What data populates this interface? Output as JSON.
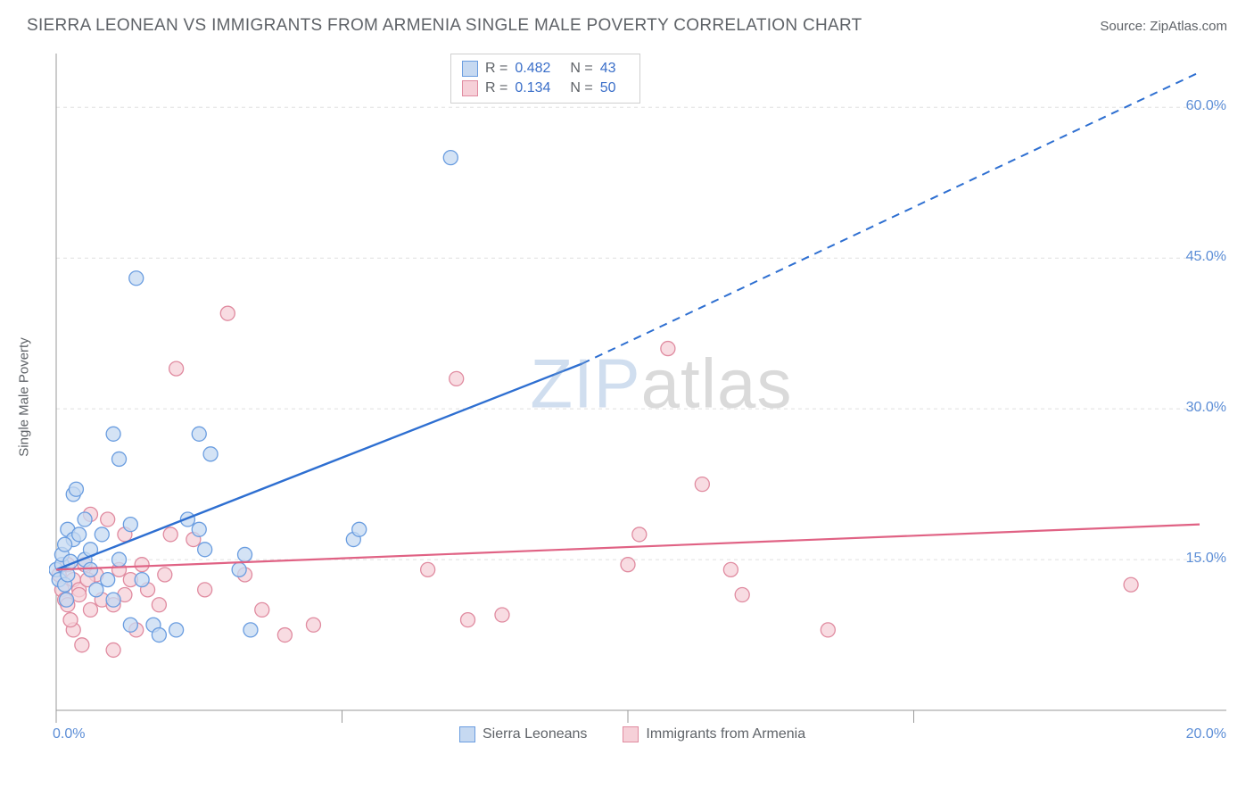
{
  "header": {
    "title": "SIERRA LEONEAN VS IMMIGRANTS FROM ARMENIA SINGLE MALE POVERTY CORRELATION CHART",
    "source_label": "Source: ",
    "source_value": "ZipAtlas.com"
  },
  "chart": {
    "type": "scatter",
    "ylabel": "Single Male Poverty",
    "watermark": {
      "part1": "ZIP",
      "part2": "atlas"
    },
    "background_color": "#ffffff",
    "grid_color": "#e0e0e0",
    "axis_color": "#9a9a9a",
    "xlim": [
      0,
      20
    ],
    "ylim": [
      0,
      65
    ],
    "y_ticks": [
      {
        "value": 15.0,
        "label": "15.0%"
      },
      {
        "value": 30.0,
        "label": "30.0%"
      },
      {
        "value": 45.0,
        "label": "45.0%"
      },
      {
        "value": 60.0,
        "label": "60.0%"
      }
    ],
    "x_ticks": [
      {
        "value": 0.0,
        "label": "0.0%"
      },
      {
        "value": 20.0,
        "label": "20.0%"
      }
    ],
    "x_grid_positions": [
      5,
      10,
      15
    ],
    "marker_radius": 8,
    "marker_stroke_width": 1.3,
    "series_a": {
      "name": "Sierra Leoneans",
      "fill": "#c6d9f1",
      "stroke": "#6a9de0",
      "line_color": "#2e6fd1",
      "r_value": "0.482",
      "n_value": "43",
      "trend": {
        "x1": 0,
        "y1": 14.0,
        "x2_solid": 9.2,
        "y2_solid": 34.5,
        "x2_dash": 20.0,
        "y2_dash": 63.5
      },
      "points": [
        [
          0.0,
          14.0
        ],
        [
          0.05,
          13.0
        ],
        [
          0.1,
          14.5
        ],
        [
          0.1,
          15.5
        ],
        [
          0.15,
          12.5
        ],
        [
          0.18,
          11.0
        ],
        [
          0.2,
          18.0
        ],
        [
          0.2,
          13.5
        ],
        [
          0.25,
          14.8
        ],
        [
          0.3,
          17.0
        ],
        [
          0.3,
          21.5
        ],
        [
          0.35,
          22.0
        ],
        [
          0.4,
          17.5
        ],
        [
          0.5,
          15.0
        ],
        [
          0.5,
          19.0
        ],
        [
          0.6,
          16.0
        ],
        [
          0.6,
          14.0
        ],
        [
          0.7,
          12.0
        ],
        [
          0.8,
          17.5
        ],
        [
          0.9,
          13.0
        ],
        [
          1.0,
          11.0
        ],
        [
          1.0,
          27.5
        ],
        [
          1.1,
          25.0
        ],
        [
          1.1,
          15.0
        ],
        [
          1.3,
          18.5
        ],
        [
          1.3,
          8.5
        ],
        [
          1.4,
          43.0
        ],
        [
          1.5,
          13.0
        ],
        [
          1.7,
          8.5
        ],
        [
          1.8,
          7.5
        ],
        [
          2.1,
          8.0
        ],
        [
          2.3,
          19.0
        ],
        [
          2.5,
          27.5
        ],
        [
          2.5,
          18.0
        ],
        [
          2.6,
          16.0
        ],
        [
          2.7,
          25.5
        ],
        [
          3.2,
          14.0
        ],
        [
          3.3,
          15.5
        ],
        [
          3.4,
          8.0
        ],
        [
          5.2,
          17.0
        ],
        [
          5.3,
          18.0
        ],
        [
          6.9,
          55.0
        ],
        [
          0.15,
          16.5
        ]
      ]
    },
    "series_b": {
      "name": "Immigrants from Armenia",
      "fill": "#f6d0d8",
      "stroke": "#e08ba0",
      "line_color": "#e06284",
      "r_value": "0.134",
      "n_value": "50",
      "trend": {
        "x1": 0,
        "y1": 14.0,
        "x2": 20.0,
        "y2": 18.5
      },
      "points": [
        [
          0.05,
          13.5
        ],
        [
          0.1,
          12.0
        ],
        [
          0.15,
          11.0
        ],
        [
          0.2,
          14.5
        ],
        [
          0.2,
          10.5
        ],
        [
          0.3,
          13.0
        ],
        [
          0.3,
          8.0
        ],
        [
          0.4,
          12.0
        ],
        [
          0.4,
          11.5
        ],
        [
          0.45,
          6.5
        ],
        [
          0.5,
          14.5
        ],
        [
          0.6,
          10.0
        ],
        [
          0.6,
          19.5
        ],
        [
          0.7,
          13.5
        ],
        [
          0.8,
          11.0
        ],
        [
          0.9,
          19.0
        ],
        [
          1.0,
          10.5
        ],
        [
          1.0,
          6.0
        ],
        [
          1.1,
          14.0
        ],
        [
          1.2,
          17.5
        ],
        [
          1.2,
          11.5
        ],
        [
          1.3,
          13.0
        ],
        [
          1.4,
          8.0
        ],
        [
          1.5,
          14.5
        ],
        [
          1.6,
          12.0
        ],
        [
          1.8,
          10.5
        ],
        [
          1.9,
          13.5
        ],
        [
          2.0,
          17.5
        ],
        [
          2.1,
          34.0
        ],
        [
          2.4,
          17.0
        ],
        [
          2.6,
          12.0
        ],
        [
          3.0,
          39.5
        ],
        [
          3.3,
          13.5
        ],
        [
          3.6,
          10.0
        ],
        [
          4.0,
          7.5
        ],
        [
          4.5,
          8.5
        ],
        [
          6.5,
          14.0
        ],
        [
          7.0,
          33.0
        ],
        [
          7.2,
          9.0
        ],
        [
          7.8,
          9.5
        ],
        [
          10.0,
          14.5
        ],
        [
          10.2,
          17.5
        ],
        [
          10.7,
          36.0
        ],
        [
          11.3,
          22.5
        ],
        [
          11.8,
          14.0
        ],
        [
          12.0,
          11.5
        ],
        [
          13.5,
          8.0
        ],
        [
          18.8,
          12.5
        ],
        [
          0.25,
          9.0
        ],
        [
          0.55,
          13.0
        ]
      ]
    },
    "legend_bottom": [
      {
        "label": "Sierra Leoneans",
        "fill": "#c6d9f1",
        "stroke": "#6a9de0"
      },
      {
        "label": "Immigrants from Armenia",
        "fill": "#f6d0d8",
        "stroke": "#e08ba0"
      }
    ],
    "stats_label_r": "R =",
    "stats_label_n": "N ="
  }
}
